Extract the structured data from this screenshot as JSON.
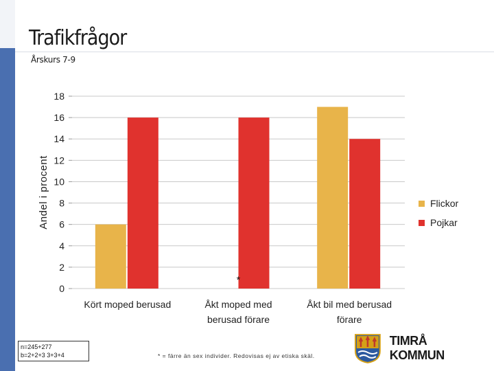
{
  "header": {
    "title": "Trafikfrågor",
    "subtitle": "Årskurs 7-9"
  },
  "chart_data": {
    "type": "bar",
    "title": "Trafikfrågor",
    "ylabel": "Andel i procent",
    "xlabel": "",
    "ylim": [
      0,
      18
    ],
    "yticks": [
      0,
      2,
      4,
      6,
      8,
      10,
      12,
      14,
      16,
      18
    ],
    "grid": true,
    "legend_position": "right",
    "categories": [
      "Kört moped berusad",
      "Åkt moped med berusad förare",
      "Åkt bil med berusad förare"
    ],
    "series": [
      {
        "name": "Flickor",
        "color": "#E8B44A",
        "values": [
          6,
          null,
          17
        ]
      },
      {
        "name": "Pojkar",
        "color": "#E0322E",
        "values": [
          16,
          16,
          14
        ]
      }
    ],
    "annotations": [
      {
        "category_index": 1,
        "series_index": 0,
        "text": "*"
      }
    ]
  },
  "notes": {
    "sample_line1": "n=245+277",
    "sample_line2": "b=2+2+3  3+3+4",
    "footnote": "* = färre än sex individer. Redovisas ej av etiska skäl."
  },
  "logo": {
    "text": "TIMRÅ KOMMUN"
  }
}
